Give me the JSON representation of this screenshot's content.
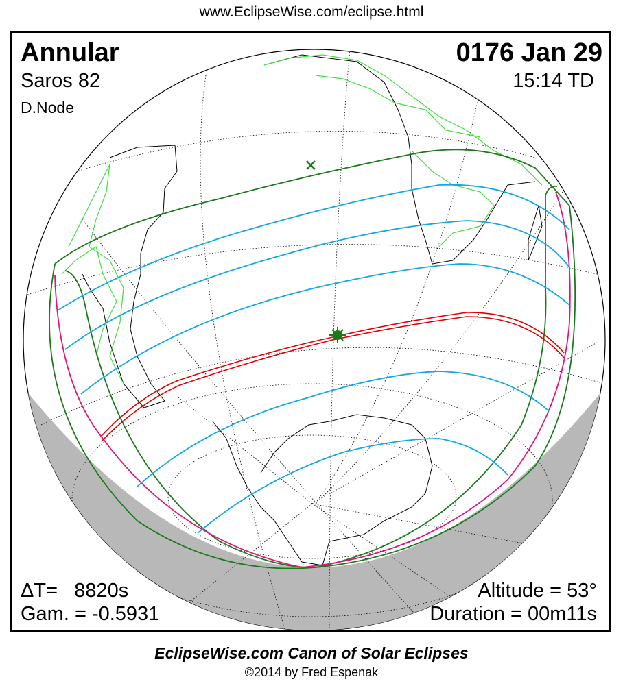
{
  "url": "www.EclipseWise.com/eclipse.html",
  "eclipse": {
    "type": "Annular",
    "saros": "Saros  82",
    "node": "D.Node",
    "date": "0176 Jan 29",
    "time": "15:14 TD",
    "delta_t": "ΔT=   8820s",
    "gamma": "Gam. = -0.5931",
    "altitude": "Altitude = 53°",
    "duration": "Duration = 00m11s"
  },
  "footer": {
    "title": "EclipseWise.com Canon of Solar Eclipses",
    "copyright": "©2014 by Fred Espenak"
  },
  "colors": {
    "central_path": "#e00000",
    "penumbral_limits": "#1a7a1a",
    "partial_lines": "#10a8e8",
    "rise_set_curve": "#e8107a",
    "continents_outline": "#000000",
    "borders": "#40e040",
    "night": "#b8b8b8"
  },
  "markers": {
    "greatest_eclipse": "star-icon",
    "subsolar_point": "x-icon"
  }
}
